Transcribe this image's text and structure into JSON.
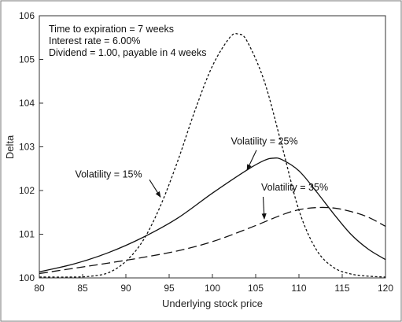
{
  "chart_data": {
    "type": "line",
    "title": "",
    "xlabel": "Underlying stock price",
    "ylabel": "Delta",
    "xlim": [
      80,
      120
    ],
    "ylim": [
      100,
      106
    ],
    "xticks": [
      "80",
      "85",
      "90",
      "95",
      "100",
      "105",
      "110",
      "115",
      "120"
    ],
    "yticks": [
      "100",
      "101",
      "102",
      "103",
      "104",
      "105",
      "106"
    ],
    "grid": false,
    "legend": "none",
    "annotations": [
      "Time to expiration = 7 weeks",
      "Interest rate = 6.00%",
      "Dividend = 1.00, payable in 4 weeks"
    ],
    "series": [
      {
        "name": "Volatility = 15%",
        "style": "short-dash",
        "x": [
          80,
          84,
          86,
          88,
          90,
          92,
          94,
          96,
          98,
          100,
          102,
          103,
          104,
          106,
          108,
          110,
          112,
          114,
          116,
          118,
          120
        ],
        "y": [
          100.02,
          100.02,
          100.04,
          100.12,
          100.38,
          100.86,
          101.65,
          102.68,
          103.84,
          104.85,
          105.5,
          105.58,
          105.42,
          104.5,
          103.05,
          101.55,
          100.65,
          100.24,
          100.09,
          100.04,
          100.02
        ]
      },
      {
        "name": "Volatility = 25%",
        "style": "solid",
        "x": [
          80,
          84,
          88,
          92,
          96,
          100,
          104,
          106,
          107,
          108,
          110,
          112,
          114,
          116,
          118,
          120
        ],
        "y": [
          100.14,
          100.32,
          100.58,
          100.93,
          101.37,
          101.94,
          102.47,
          102.69,
          102.74,
          102.71,
          102.45,
          101.98,
          101.47,
          101.0,
          100.66,
          100.42
        ]
      },
      {
        "name": "Volatility = 35%",
        "style": "long-dash",
        "x": [
          80,
          84,
          88,
          92,
          96,
          100,
          104,
          108,
          110,
          112,
          114,
          116,
          118,
          120
        ],
        "y": [
          100.1,
          100.22,
          100.34,
          100.47,
          100.62,
          100.83,
          101.12,
          101.44,
          101.56,
          101.61,
          101.6,
          101.52,
          101.39,
          101.18
        ]
      }
    ],
    "series_labels": [
      {
        "text": "Volatility = 15%",
        "series": 0,
        "text_at": [
          88,
          102.3
        ],
        "arrow_to": [
          94,
          101.85
        ]
      },
      {
        "text": "Volatility = 25%",
        "series": 1,
        "text_at": [
          106,
          103.05
        ],
        "arrow_to": [
          104,
          102.47
        ]
      },
      {
        "text": "Volatility = 35%",
        "series": 2,
        "text_at": [
          109.5,
          102.0
        ],
        "arrow_to": [
          106,
          101.35
        ]
      }
    ]
  }
}
